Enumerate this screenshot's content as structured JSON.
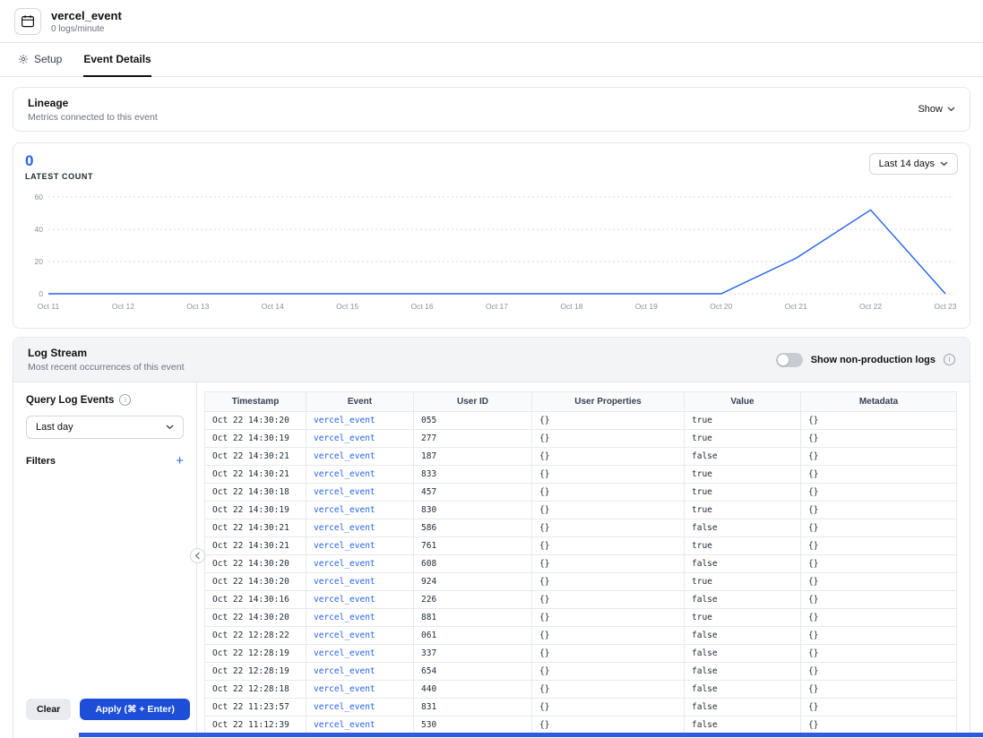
{
  "header": {
    "title": "vercel_event",
    "subtitle": "0 logs/minute"
  },
  "tabs": {
    "setup": "Setup",
    "event_details": "Event Details",
    "active": "Event Details"
  },
  "lineage": {
    "title": "Lineage",
    "subtitle": "Metrics connected to this event",
    "show_label": "Show"
  },
  "latest_count": {
    "value": "0",
    "label": "LATEST COUNT",
    "range_label": "Last 14 days"
  },
  "chart_data": {
    "type": "line",
    "title": "Latest count over last 14 days",
    "x": [
      "Oct 11",
      "Oct 12",
      "Oct 13",
      "Oct 14",
      "Oct 15",
      "Oct 16",
      "Oct 17",
      "Oct 18",
      "Oct 19",
      "Oct 20",
      "Oct 21",
      "Oct 22",
      "Oct 23"
    ],
    "values": [
      0,
      0,
      0,
      0,
      0,
      0,
      0,
      0,
      0,
      0,
      22,
      52,
      0
    ],
    "y_ticks": [
      0,
      20,
      40,
      60
    ],
    "ylim": [
      0,
      60
    ],
    "xlabel": "",
    "ylabel": "",
    "grid": "horizontal-dotted",
    "legend": "none",
    "line_color": "#2563eb"
  },
  "log_stream": {
    "title": "Log Stream",
    "subtitle": "Most recent occurrences of this event",
    "toggle_label": "Show non-production logs",
    "toggle_state": "off"
  },
  "query_panel": {
    "title": "Query Log Events",
    "time_range_value": "Last day",
    "filters_label": "Filters",
    "clear_label": "Clear",
    "apply_label": "Apply (⌘ + Enter)"
  },
  "table": {
    "columns": [
      "Timestamp",
      "Event",
      "User ID",
      "User Properties",
      "Value",
      "Metadata"
    ],
    "rows": [
      [
        "Oct 22 14:30:20",
        "vercel_event",
        "055",
        "{}",
        "true",
        "{}"
      ],
      [
        "Oct 22 14:30:19",
        "vercel_event",
        "277",
        "{}",
        "true",
        "{}"
      ],
      [
        "Oct 22 14:30:21",
        "vercel_event",
        "187",
        "{}",
        "false",
        "{}"
      ],
      [
        "Oct 22 14:30:21",
        "vercel_event",
        "833",
        "{}",
        "true",
        "{}"
      ],
      [
        "Oct 22 14:30:18",
        "vercel_event",
        "457",
        "{}",
        "true",
        "{}"
      ],
      [
        "Oct 22 14:30:19",
        "vercel_event",
        "830",
        "{}",
        "true",
        "{}"
      ],
      [
        "Oct 22 14:30:21",
        "vercel_event",
        "586",
        "{}",
        "false",
        "{}"
      ],
      [
        "Oct 22 14:30:21",
        "vercel_event",
        "761",
        "{}",
        "true",
        "{}"
      ],
      [
        "Oct 22 14:30:20",
        "vercel_event",
        "608",
        "{}",
        "false",
        "{}"
      ],
      [
        "Oct 22 14:30:20",
        "vercel_event",
        "924",
        "{}",
        "true",
        "{}"
      ],
      [
        "Oct 22 14:30:16",
        "vercel_event",
        "226",
        "{}",
        "false",
        "{}"
      ],
      [
        "Oct 22 14:30:20",
        "vercel_event",
        "881",
        "{}",
        "true",
        "{}"
      ],
      [
        "Oct 22 12:28:22",
        "vercel_event",
        "061",
        "{}",
        "false",
        "{}"
      ],
      [
        "Oct 22 12:28:19",
        "vercel_event",
        "337",
        "{}",
        "false",
        "{}"
      ],
      [
        "Oct 22 12:28:19",
        "vercel_event",
        "654",
        "{}",
        "false",
        "{}"
      ],
      [
        "Oct 22 12:28:18",
        "vercel_event",
        "440",
        "{}",
        "false",
        "{}"
      ],
      [
        "Oct 22 11:23:57",
        "vercel_event",
        "831",
        "{}",
        "false",
        "{}"
      ],
      [
        "Oct 22 11:12:39",
        "vercel_event",
        "530",
        "{}",
        "false",
        "{}"
      ]
    ]
  },
  "colors": {
    "accent_blue": "#2563eb",
    "link_blue": "#2563eb",
    "apply_button": "#1d4ed8",
    "border": "#e5e7eb",
    "muted_text": "#6b7280",
    "header_band_bg": "#f3f4f6",
    "table_header_bg": "#f9fafb",
    "bottom_bar": "#2f5ae0"
  }
}
